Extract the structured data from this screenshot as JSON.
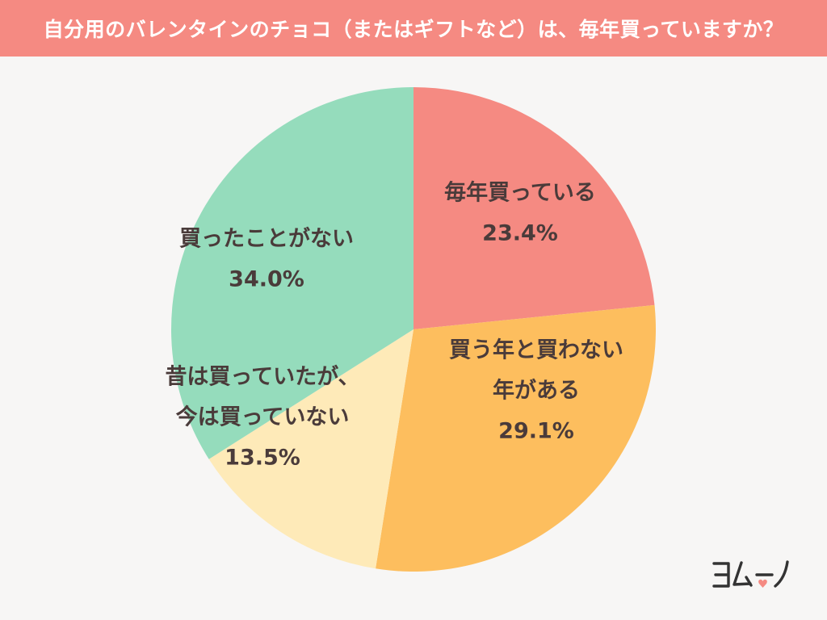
{
  "header": {
    "title": "自分用のバレンタインのチョコ（またはギフトなど）は、毎年買っていますか？"
  },
  "colors": {
    "title_bg": "#f58a82",
    "background": "#f7f6f5",
    "label_text": "#4a3b3a"
  },
  "chart_data": {
    "type": "pie",
    "start_angle": "12 o'clock",
    "direction": "clockwise",
    "slices": [
      {
        "label_lines": [
          "毎年買っている"
        ],
        "value_label": "23.4%",
        "value": 23.4,
        "color": "#f58a82"
      },
      {
        "label_lines": [
          "買う年と買わない",
          "年がある"
        ],
        "value_label": "29.1%",
        "value": 29.1,
        "color": "#fdbe5e"
      },
      {
        "label_lines": [
          "昔は買っていたが、",
          "今は買っていない"
        ],
        "value_label": "13.5%",
        "value": 13.5,
        "color": "#feeab8"
      },
      {
        "label_lines": [
          "買ったことがない"
        ],
        "value_label": "34.0%",
        "value": 34.0,
        "color": "#95dcbc"
      }
    ]
  },
  "brand": {
    "logo_text": "ヨムーノ",
    "logo_icon": "heart-icon",
    "logo_color": "#333333",
    "heart_color": "#f58a82"
  }
}
